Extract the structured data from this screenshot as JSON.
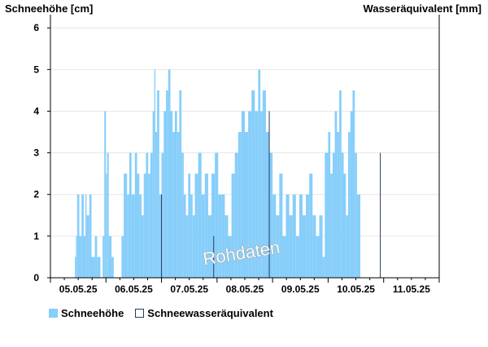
{
  "chart_data": {
    "type": "bar",
    "ylabel_left": "Schneehöhe [cm]",
    "ylabel_right": "Wasseräquivalent [mm]",
    "watermark": "Rohdaten",
    "yticks": [
      0,
      1,
      2,
      3,
      4,
      5,
      6
    ],
    "ylim": [
      0,
      6.2
    ],
    "xlim": [
      0,
      7
    ],
    "xtick_labels": [
      "05.05.25",
      "06.05.25",
      "07.05.25",
      "08.05.25",
      "09.05.25",
      "10.05.25",
      "11.05.25"
    ],
    "grid": true,
    "colors": {
      "snow": "#87cefa",
      "swe_line": "#2b3a5e",
      "grid": "#e6e6e6",
      "axis": "#000000"
    },
    "series": [
      {
        "name": "Schneehöhe",
        "resolution_hours": 1,
        "values": [
          0,
          0,
          0,
          0,
          0,
          0,
          0,
          0,
          0,
          0,
          0,
          0,
          0,
          0,
          0,
          0,
          0,
          0,
          0,
          0,
          0,
          0,
          0,
          0,
          0,
          0,
          0,
          0,
          0,
          0,
          0,
          0,
          0,
          0,
          0,
          0,
          0,
          0,
          0,
          0,
          0,
          0,
          0,
          0,
          0,
          0,
          0,
          0,
          0,
          0,
          0,
          0,
          0,
          0,
          0,
          0,
          0,
          0,
          0,
          0,
          0,
          0,
          0,
          0,
          0,
          0,
          0,
          0,
          0,
          0,
          0,
          0,
          0,
          0,
          0,
          0,
          0,
          0,
          0,
          0,
          0,
          0,
          0,
          0,
          0,
          0,
          0,
          0,
          0,
          0,
          0,
          0,
          0,
          0,
          0,
          0,
          0,
          0,
          0,
          0,
          0,
          0,
          0,
          0,
          0,
          0,
          0,
          0,
          0,
          0,
          0,
          0,
          0,
          0,
          0,
          0,
          0,
          0,
          0,
          0,
          0,
          0,
          0,
          0,
          0,
          0,
          0,
          0,
          0,
          0,
          0,
          0,
          0,
          0,
          0,
          0,
          0,
          0,
          0,
          0,
          0,
          0,
          0,
          0,
          0,
          0,
          0,
          0,
          0,
          0,
          0,
          0,
          0,
          0,
          0,
          0,
          0,
          0,
          0,
          0,
          0,
          0,
          0,
          0,
          0,
          0,
          0,
          0
        ],
        "ranges": [
          [
            0.44,
            0.46,
            0.5
          ],
          [
            0.46,
            0.48,
            1
          ],
          [
            0.48,
            0.52,
            2
          ],
          [
            0.52,
            0.56,
            1
          ],
          [
            0.56,
            0.6,
            2
          ],
          [
            0.6,
            0.63,
            1
          ],
          [
            0.63,
            0.65,
            2
          ],
          [
            0.65,
            0.7,
            1.5
          ],
          [
            0.7,
            0.74,
            2
          ],
          [
            0.74,
            0.8,
            0.5
          ],
          [
            0.8,
            0.84,
            1
          ],
          [
            0.84,
            0.9,
            0.5
          ],
          [
            0.94,
            0.97,
            1
          ],
          [
            0.97,
            1.0,
            4
          ],
          [
            1.0,
            1.02,
            2.5
          ],
          [
            1.02,
            1.05,
            3
          ],
          [
            1.05,
            1.1,
            1
          ],
          [
            1.1,
            1.14,
            0.5
          ],
          [
            1.28,
            1.32,
            1
          ],
          [
            1.32,
            1.38,
            2.5
          ],
          [
            1.38,
            1.42,
            2
          ],
          [
            1.42,
            1.46,
            3
          ],
          [
            1.46,
            1.52,
            2
          ],
          [
            1.52,
            1.56,
            3
          ],
          [
            1.56,
            1.6,
            2.5
          ],
          [
            1.6,
            1.64,
            2
          ],
          [
            1.64,
            1.68,
            1.5
          ],
          [
            1.68,
            1.72,
            2.5
          ],
          [
            1.72,
            1.76,
            3
          ],
          [
            1.76,
            1.8,
            2.5
          ],
          [
            1.8,
            1.84,
            3
          ],
          [
            1.84,
            1.87,
            4
          ],
          [
            1.87,
            1.89,
            5
          ],
          [
            1.89,
            1.92,
            3.5
          ],
          [
            1.92,
            1.96,
            4.5
          ],
          [
            1.96,
            2.0,
            2
          ],
          [
            2.0,
            2.04,
            3
          ],
          [
            2.04,
            2.08,
            4
          ],
          [
            2.08,
            2.12,
            4.5
          ],
          [
            2.12,
            2.16,
            5
          ],
          [
            2.16,
            2.2,
            4
          ],
          [
            2.2,
            2.24,
            3.5
          ],
          [
            2.24,
            2.28,
            4
          ],
          [
            2.28,
            2.32,
            3.5
          ],
          [
            2.32,
            2.36,
            4.5
          ],
          [
            2.36,
            2.4,
            3
          ],
          [
            2.4,
            2.44,
            2
          ],
          [
            2.44,
            2.48,
            1.5
          ],
          [
            2.48,
            2.52,
            2.5
          ],
          [
            2.52,
            2.56,
            2
          ],
          [
            2.56,
            2.6,
            1.5
          ],
          [
            2.6,
            2.66,
            2.5
          ],
          [
            2.66,
            2.72,
            3
          ],
          [
            2.72,
            2.78,
            2
          ],
          [
            2.78,
            2.84,
            2.5
          ],
          [
            2.84,
            2.9,
            1.5
          ],
          [
            2.9,
            2.96,
            2.5
          ],
          [
            2.96,
            3.02,
            3
          ],
          [
            3.02,
            3.08,
            2
          ],
          [
            3.08,
            3.14,
            2
          ],
          [
            3.14,
            3.2,
            1.5
          ],
          [
            3.2,
            3.26,
            1
          ],
          [
            3.26,
            3.32,
            2.5
          ],
          [
            3.32,
            3.38,
            3
          ],
          [
            3.38,
            3.44,
            3.5
          ],
          [
            3.44,
            3.5,
            4
          ],
          [
            3.5,
            3.56,
            3.5
          ],
          [
            3.56,
            3.62,
            4
          ],
          [
            3.62,
            3.68,
            4.5
          ],
          [
            3.68,
            3.74,
            4
          ],
          [
            3.74,
            3.78,
            5
          ],
          [
            3.78,
            3.82,
            4
          ],
          [
            3.82,
            3.88,
            4.5
          ],
          [
            3.88,
            3.94,
            3.5
          ],
          [
            3.94,
            4.0,
            3
          ],
          [
            4.0,
            4.06,
            2
          ],
          [
            4.06,
            4.12,
            1.5
          ],
          [
            4.12,
            4.18,
            2.5
          ],
          [
            4.18,
            4.24,
            1
          ],
          [
            4.24,
            4.3,
            2
          ],
          [
            4.3,
            4.36,
            1.5
          ],
          [
            4.36,
            4.42,
            2
          ],
          [
            4.42,
            4.48,
            1
          ],
          [
            4.48,
            4.54,
            2
          ],
          [
            4.54,
            4.6,
            1.5
          ],
          [
            4.6,
            4.66,
            2
          ],
          [
            4.66,
            4.72,
            2.5
          ],
          [
            4.72,
            4.78,
            1.5
          ],
          [
            4.78,
            4.84,
            1
          ],
          [
            4.84,
            4.9,
            1.5
          ],
          [
            4.9,
            4.94,
            0.5
          ],
          [
            4.94,
            5.0,
            3
          ],
          [
            5.0,
            5.04,
            3.5
          ],
          [
            5.04,
            5.08,
            2.5
          ],
          [
            5.08,
            5.12,
            3
          ],
          [
            5.12,
            5.16,
            4
          ],
          [
            5.16,
            5.2,
            3.5
          ],
          [
            5.2,
            5.24,
            4.5
          ],
          [
            5.24,
            5.28,
            3
          ],
          [
            5.28,
            5.32,
            2.5
          ],
          [
            5.32,
            5.36,
            1.5
          ],
          [
            5.36,
            5.4,
            3.5
          ],
          [
            5.4,
            5.44,
            4
          ],
          [
            5.44,
            5.48,
            4.5
          ],
          [
            5.48,
            5.52,
            3
          ],
          [
            5.52,
            5.58,
            2
          ]
        ]
      },
      {
        "name": "Schneewasseräquivalent",
        "points": [
          [
            2.0,
            2
          ],
          [
            2.94,
            1
          ],
          [
            3.94,
            4
          ],
          [
            5.94,
            3
          ]
        ]
      }
    ]
  },
  "legend": {
    "snow_label": "Schneehöhe",
    "swe_label": "Schneewasseräquivalent"
  }
}
